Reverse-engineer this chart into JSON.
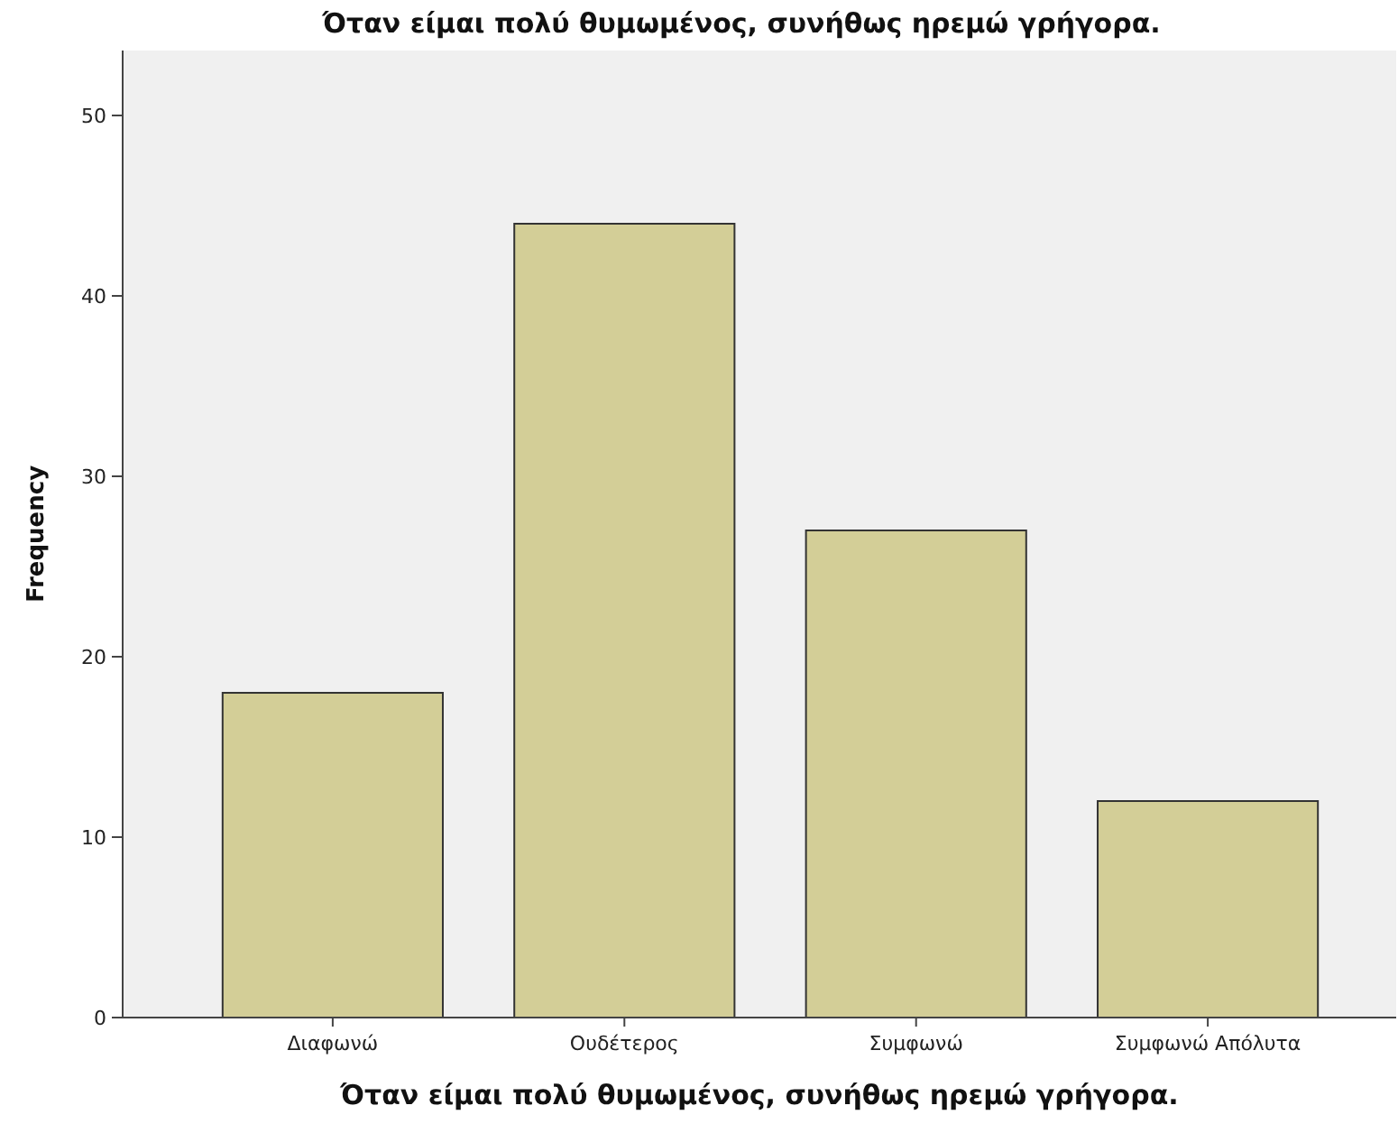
{
  "chart_data": {
    "type": "bar",
    "title": "Όταν είμαι πολύ θυμωμένος, συνήθως ηρεμώ γρήγορα.",
    "xlabel": "Όταν είμαι πολύ θυμωμένος, συνήθως ηρεμώ γρήγορα.",
    "ylabel": "Frequency",
    "categories": [
      "Διαφωνώ",
      "Ουδέτερος",
      "Συμφωνώ",
      "Συμφωνώ Απόλυτα"
    ],
    "values": [
      18,
      44,
      27,
      12
    ],
    "color": "#d3ce97",
    "ylim": [
      0,
      53.6
    ],
    "yticks": [
      0,
      10,
      20,
      30,
      40,
      50
    ],
    "grid": false
  }
}
